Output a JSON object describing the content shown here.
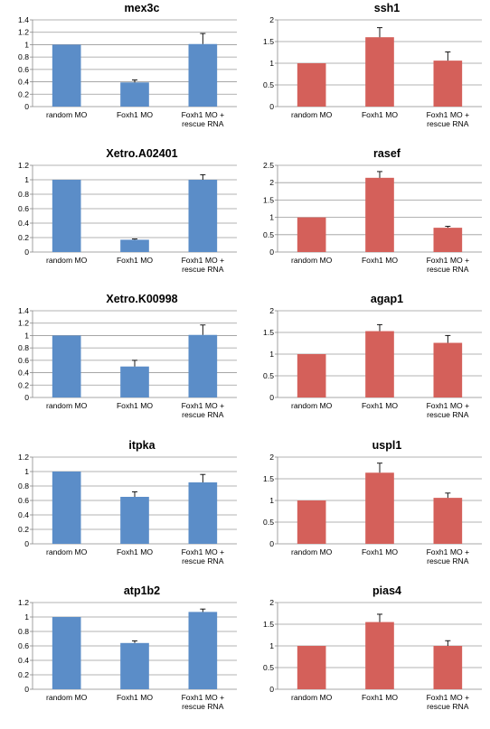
{
  "chart_data": [
    {
      "type": "bar",
      "title": "mex3c",
      "categories": [
        "random MO",
        "Foxh1 MO",
        "Foxh1 MO + rescue RNA"
      ],
      "values": [
        1.0,
        0.39,
        1.01
      ],
      "errors": [
        0,
        0.04,
        0.17
      ],
      "ylim": [
        0,
        1.4
      ],
      "yticks": [
        "0",
        "0.2",
        "0.4",
        "0.6",
        "0.8",
        "1",
        "1.2",
        "1.4"
      ],
      "color": "#5b8dc8",
      "xlabel": "",
      "ylabel": ""
    },
    {
      "type": "bar",
      "title": "ssh1",
      "categories": [
        "random MO",
        "Foxh1 MO",
        "Foxh1 MO + rescue RNA"
      ],
      "values": [
        1.0,
        1.6,
        1.06
      ],
      "errors": [
        0,
        0.22,
        0.2
      ],
      "ylim": [
        0,
        2
      ],
      "yticks": [
        "0",
        "0.5",
        "1",
        "1.5",
        "2"
      ],
      "color": "#d4605a",
      "xlabel": "",
      "ylabel": ""
    },
    {
      "type": "bar",
      "title": "Xetro.A02401",
      "categories": [
        "random MO",
        "Foxh1 MO",
        "Foxh1 MO + rescue RNA"
      ],
      "values": [
        1.0,
        0.17,
        1.0
      ],
      "errors": [
        0,
        0.01,
        0.07
      ],
      "ylim": [
        0,
        1.2
      ],
      "yticks": [
        "0",
        "0.2",
        "0.4",
        "0.6",
        "0.8",
        "1",
        "1.2"
      ],
      "color": "#5b8dc8",
      "xlabel": "",
      "ylabel": ""
    },
    {
      "type": "bar",
      "title": "rasef",
      "categories": [
        "random MO",
        "Foxh1 MO",
        "Foxh1 MO + rescue RNA"
      ],
      "values": [
        1.0,
        2.14,
        0.7
      ],
      "errors": [
        0,
        0.18,
        0.04
      ],
      "ylim": [
        0,
        2.5
      ],
      "yticks": [
        "0",
        "0.5",
        "1",
        "1.5",
        "2",
        "2.5"
      ],
      "color": "#d4605a",
      "xlabel": "",
      "ylabel": ""
    },
    {
      "type": "bar",
      "title": "Xetro.K00998",
      "categories": [
        "random MO",
        "Foxh1 MO",
        "Foxh1 MO + rescue RNA"
      ],
      "values": [
        1.0,
        0.5,
        1.01
      ],
      "errors": [
        0,
        0.1,
        0.16
      ],
      "ylim": [
        0,
        1.4
      ],
      "yticks": [
        "0",
        "0.2",
        "0.4",
        "0.6",
        "0.8",
        "1",
        "1.2",
        "1.4"
      ],
      "color": "#5b8dc8",
      "xlabel": "",
      "ylabel": ""
    },
    {
      "type": "bar",
      "title": "agap1",
      "categories": [
        "random MO",
        "Foxh1 MO",
        "Foxh1 MO + rescue RNA"
      ],
      "values": [
        1.0,
        1.53,
        1.26
      ],
      "errors": [
        0,
        0.15,
        0.17
      ],
      "ylim": [
        0,
        2
      ],
      "yticks": [
        "0",
        "0.5",
        "1",
        "1.5",
        "2"
      ],
      "color": "#d4605a",
      "xlabel": "",
      "ylabel": ""
    },
    {
      "type": "bar",
      "title": "itpka",
      "categories": [
        "random MO",
        "Foxh1 MO",
        "Foxh1 MO + rescue RNA"
      ],
      "values": [
        1.0,
        0.65,
        0.85
      ],
      "errors": [
        0,
        0.07,
        0.11
      ],
      "ylim": [
        0,
        1.2
      ],
      "yticks": [
        "0",
        "0.2",
        "0.4",
        "0.6",
        "0.8",
        "1",
        "1.2"
      ],
      "color": "#5b8dc8",
      "xlabel": "",
      "ylabel": ""
    },
    {
      "type": "bar",
      "title": "uspl1",
      "categories": [
        "random MO",
        "Foxh1 MO",
        "Foxh1 MO + rescue RNA"
      ],
      "values": [
        1.0,
        1.64,
        1.06
      ],
      "errors": [
        0,
        0.22,
        0.11
      ],
      "ylim": [
        0,
        2
      ],
      "yticks": [
        "0",
        "0.5",
        "1",
        "1.5",
        "2"
      ],
      "color": "#d4605a",
      "xlabel": "",
      "ylabel": ""
    },
    {
      "type": "bar",
      "title": "atp1b2",
      "categories": [
        "random MO",
        "Foxh1 MO",
        "Foxh1 MO + rescue RNA"
      ],
      "values": [
        1.0,
        0.64,
        1.07
      ],
      "errors": [
        0,
        0.03,
        0.04
      ],
      "ylim": [
        0,
        1.2
      ],
      "yticks": [
        "0",
        "0.2",
        "0.4",
        "0.6",
        "0.8",
        "1",
        "1.2"
      ],
      "color": "#5b8dc8",
      "xlabel": "",
      "ylabel": ""
    },
    {
      "type": "bar",
      "title": "pias4",
      "categories": [
        "random MO",
        "Foxh1 MO",
        "Foxh1 MO + rescue RNA"
      ],
      "values": [
        1.0,
        1.55,
        1.0
      ],
      "errors": [
        0,
        0.18,
        0.12
      ],
      "ylim": [
        0,
        2
      ],
      "yticks": [
        "0",
        "0.5",
        "1",
        "1.5",
        "2"
      ],
      "color": "#d4605a",
      "xlabel": "",
      "ylabel": ""
    }
  ]
}
